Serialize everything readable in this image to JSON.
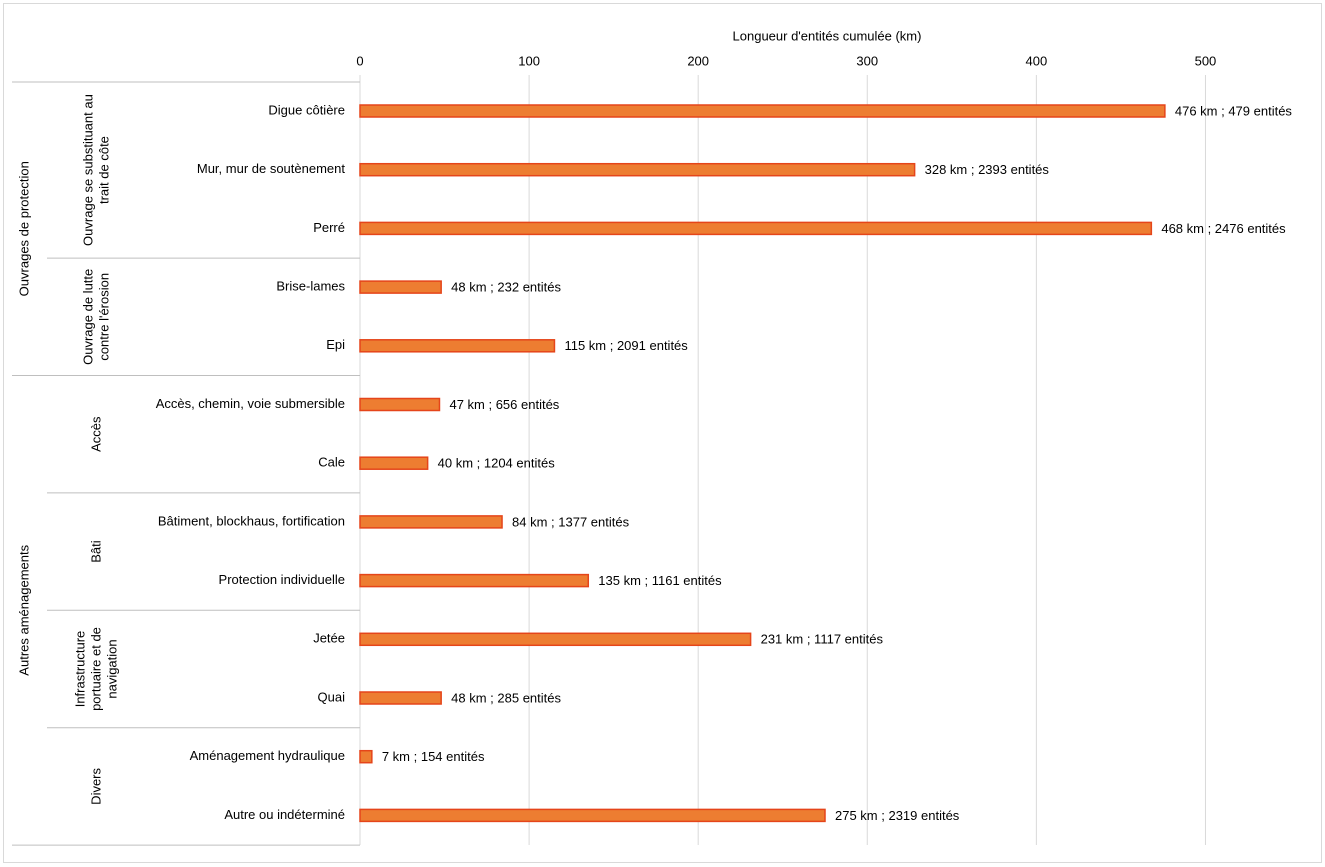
{
  "chart_data": {
    "type": "bar",
    "orientation": "horizontal",
    "x_label": "Longueur d'entités cumulée  (km)",
    "xlim": [
      0,
      550
    ],
    "xticks": [
      0,
      100,
      200,
      300,
      400,
      500
    ],
    "grid": true,
    "color": "#ed7d31",
    "edge_color": "#e5451a",
    "groups": [
      {
        "label": [
          "Ouvrages de protection"
        ],
        "subgroups": [
          {
            "label": [
              "Ouvrage se substituant au",
              "trait de côte"
            ],
            "categories": [
              "Digue côtière",
              "Mur, mur de soutènement",
              "Perré"
            ],
            "values": [
              476,
              328,
              468
            ],
            "value_labels": [
              "476 km ; 479 entités",
              "328 km ; 2393 entités",
              "468 km ; 2476 entités"
            ]
          },
          {
            "label": [
              "Ouvrage de lutte",
              "contre l'érosion"
            ],
            "categories": [
              "Brise-lames",
              "Epi"
            ],
            "values": [
              48,
              115
            ],
            "value_labels": [
              "48 km ; 232 entités",
              "115 km ; 2091 entités"
            ]
          }
        ]
      },
      {
        "label": [
          "Autres aménagements"
        ],
        "subgroups": [
          {
            "label": [
              "Accès"
            ],
            "categories": [
              "Accès, chemin, voie submersible",
              "Cale"
            ],
            "values": [
              47,
              40
            ],
            "value_labels": [
              "47 km ; 656 entités",
              "40 km ; 1204 entités"
            ]
          },
          {
            "label": [
              "Bâti"
            ],
            "categories": [
              "Bâtiment, blockhaus, fortification",
              "Protection individuelle"
            ],
            "values": [
              84,
              135
            ],
            "value_labels": [
              "84 km ; 1377 entités",
              "135 km ; 1161 entités"
            ]
          },
          {
            "label": [
              "Infrastructure",
              "portuaire et de",
              "navigation"
            ],
            "categories": [
              "Jetée",
              "Quai"
            ],
            "values": [
              231,
              48
            ],
            "value_labels": [
              "231 km ; 1117 entités",
              "48 km ; 285 entités"
            ]
          },
          {
            "label": [
              "Divers"
            ],
            "categories": [
              "Aménagement hydraulique",
              "Autre ou indéterminé"
            ],
            "values": [
              7,
              275
            ],
            "value_labels": [
              "7 km ; 154 entités",
              "275 km ; 2319 entités"
            ]
          }
        ]
      }
    ]
  }
}
